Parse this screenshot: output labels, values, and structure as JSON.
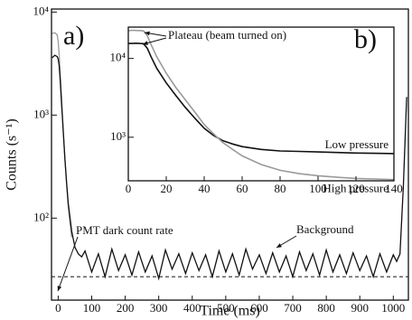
{
  "chart_data": [
    {
      "type": "line",
      "label": "a)",
      "xlabel": "Time (ms)",
      "ylabel": "Counts (s⁻¹)",
      "ylog": true,
      "xlim": [
        -20,
        1045
      ],
      "ylim": [
        16,
        10700
      ],
      "xticks": [
        0,
        100,
        200,
        300,
        400,
        500,
        600,
        700,
        800,
        900,
        1000
      ],
      "yticks": [
        {
          "value": 100,
          "label": "10²"
        },
        {
          "value": 1000,
          "label": "10³"
        },
        {
          "value": 10000,
          "label": "10⁴"
        }
      ],
      "hline": 27,
      "annotations": [
        "PMT dark count rate",
        "Background"
      ],
      "series": [
        {
          "color": "#9a9a9a",
          "x": [
            -18,
            -10,
            -3,
            0,
            3,
            6,
            10,
            15,
            20,
            30,
            40
          ],
          "values": [
            6200,
            6300,
            6000,
            5200,
            3800,
            2600,
            1500,
            700,
            380,
            130,
            65
          ]
        },
        {
          "color": "#111111",
          "x": [
            -18,
            -10,
            -3,
            0,
            3,
            6,
            10,
            15,
            20,
            25,
            30,
            40,
            50,
            60,
            70,
            80,
            100,
            120,
            140,
            160,
            180,
            200,
            220,
            240,
            260,
            280,
            300,
            320,
            340,
            360,
            380,
            400,
            420,
            440,
            460,
            480,
            500,
            520,
            540,
            560,
            580,
            600,
            620,
            640,
            660,
            680,
            700,
            720,
            740,
            760,
            780,
            800,
            820,
            840,
            860,
            880,
            900,
            920,
            940,
            960,
            980,
            1000,
            1010,
            1020,
            1030,
            1040
          ],
          "values": [
            3600,
            3800,
            3700,
            3500,
            3000,
            2200,
            1300,
            700,
            380,
            220,
            140,
            75,
            52,
            45,
            42,
            48,
            30,
            45,
            27,
            50,
            31,
            44,
            28,
            47,
            30,
            43,
            26,
            49,
            32,
            45,
            29,
            46,
            31,
            44,
            27,
            48,
            30,
            45,
            28,
            50,
            32,
            44,
            29,
            46,
            30,
            43,
            27,
            47,
            31,
            45,
            28,
            49,
            30,
            44,
            29,
            46,
            31,
            43,
            27,
            45,
            30,
            44,
            38,
            45,
            200,
            1500
          ]
        }
      ]
    },
    {
      "type": "line",
      "label": "b)",
      "ylog": true,
      "xlim": [
        0,
        140
      ],
      "ylim": [
        280,
        25000
      ],
      "xticks": [
        0,
        20,
        40,
        60,
        80,
        100,
        120,
        140
      ],
      "yticks": [
        {
          "value": 1000,
          "label": "10³"
        },
        {
          "value": 10000,
          "label": "10⁴"
        }
      ],
      "annotations": [
        "Plateau (beam turned on)"
      ],
      "series": [
        {
          "name": "Low pressure",
          "color": "#111111",
          "x": [
            0,
            2,
            4,
            6,
            8,
            10,
            12,
            15,
            20,
            25,
            30,
            35,
            40,
            45,
            50,
            55,
            60,
            70,
            80,
            90,
            100,
            110,
            120,
            130,
            140
          ],
          "values": [
            15500,
            15500,
            15600,
            15500,
            15400,
            13500,
            10500,
            7500,
            4900,
            3400,
            2400,
            1750,
            1300,
            1050,
            900,
            820,
            760,
            700,
            670,
            660,
            650,
            640,
            630,
            625,
            620
          ]
        },
        {
          "name": "High pressure",
          "color": "#9a9a9a",
          "x": [
            0,
            2,
            4,
            6,
            8,
            10,
            12,
            15,
            20,
            25,
            30,
            35,
            40,
            45,
            50,
            55,
            60,
            70,
            80,
            90,
            100,
            110,
            120,
            130,
            140
          ],
          "values": [
            22500,
            22800,
            22700,
            22600,
            22400,
            19500,
            15000,
            10500,
            6500,
            4300,
            3000,
            2100,
            1450,
            1100,
            850,
            700,
            580,
            450,
            380,
            345,
            325,
            310,
            300,
            295,
            290
          ]
        }
      ]
    }
  ]
}
